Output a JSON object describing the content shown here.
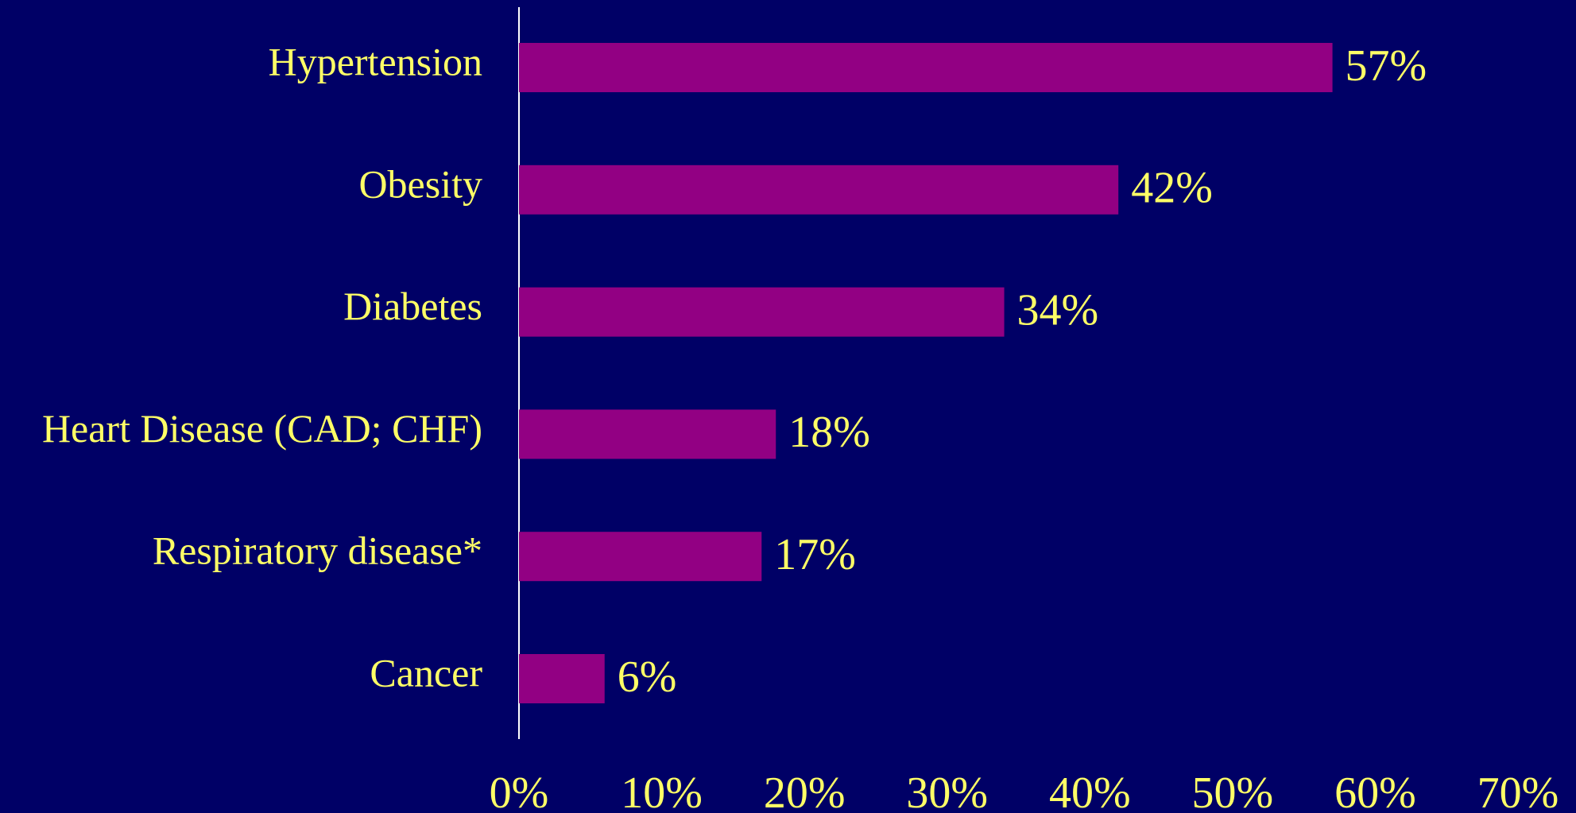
{
  "chart_data": {
    "type": "bar",
    "orientation": "horizontal",
    "categories": [
      "Hypertension",
      "Obesity",
      "Diabetes",
      "Heart Disease (CAD; CHF)",
      "Respiratory disease*",
      "Cancer"
    ],
    "values": [
      57,
      42,
      34,
      18,
      17,
      6
    ],
    "value_labels": [
      "57%",
      "42%",
      "34%",
      "18%",
      "17%",
      "6%"
    ],
    "color": "#920083",
    "xlim": [
      0,
      70
    ],
    "xticks": [
      {
        "value": 0,
        "label": "0%"
      },
      {
        "value": 10,
        "label": "10%"
      },
      {
        "value": 20,
        "label": "20%"
      },
      {
        "value": 30,
        "label": "30%"
      },
      {
        "value": 40,
        "label": "40%"
      },
      {
        "value": 50,
        "label": "50%"
      },
      {
        "value": 60,
        "label": "60%"
      },
      {
        "value": 70,
        "label": "70%"
      }
    ],
    "grid": false
  }
}
